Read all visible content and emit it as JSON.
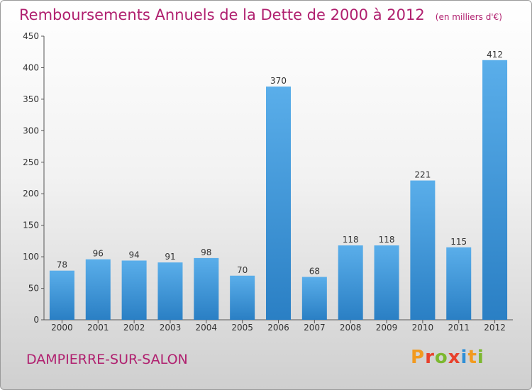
{
  "header": {
    "title": "Remboursements Annuels de la Dette de 2000 à 2012",
    "subtitle": "(en milliers d'€)"
  },
  "footer": {
    "commune": "DAMPIERRE-SUR-SALON",
    "brand": "Proxiti"
  },
  "colors": {
    "title": "#b0206f",
    "bar_top": "#5aaeea",
    "bar_bottom": "#2a7fc4",
    "brand_letters": [
      "#f29a1f",
      "#e8412c",
      "#7cb82f",
      "#e8412c",
      "#2f8fd6",
      "#f29a1f",
      "#7cb82f"
    ]
  },
  "chart_data": {
    "type": "bar",
    "categories": [
      "2000",
      "2001",
      "2002",
      "2003",
      "2004",
      "2005",
      "2006",
      "2007",
      "2008",
      "2009",
      "2010",
      "2011",
      "2012"
    ],
    "values": [
      78,
      96,
      94,
      91,
      98,
      70,
      370,
      68,
      118,
      118,
      221,
      115,
      412
    ],
    "ylim": [
      0,
      450
    ],
    "yticks": [
      0,
      50,
      100,
      150,
      200,
      250,
      300,
      350,
      400,
      450
    ],
    "grid": false
  }
}
